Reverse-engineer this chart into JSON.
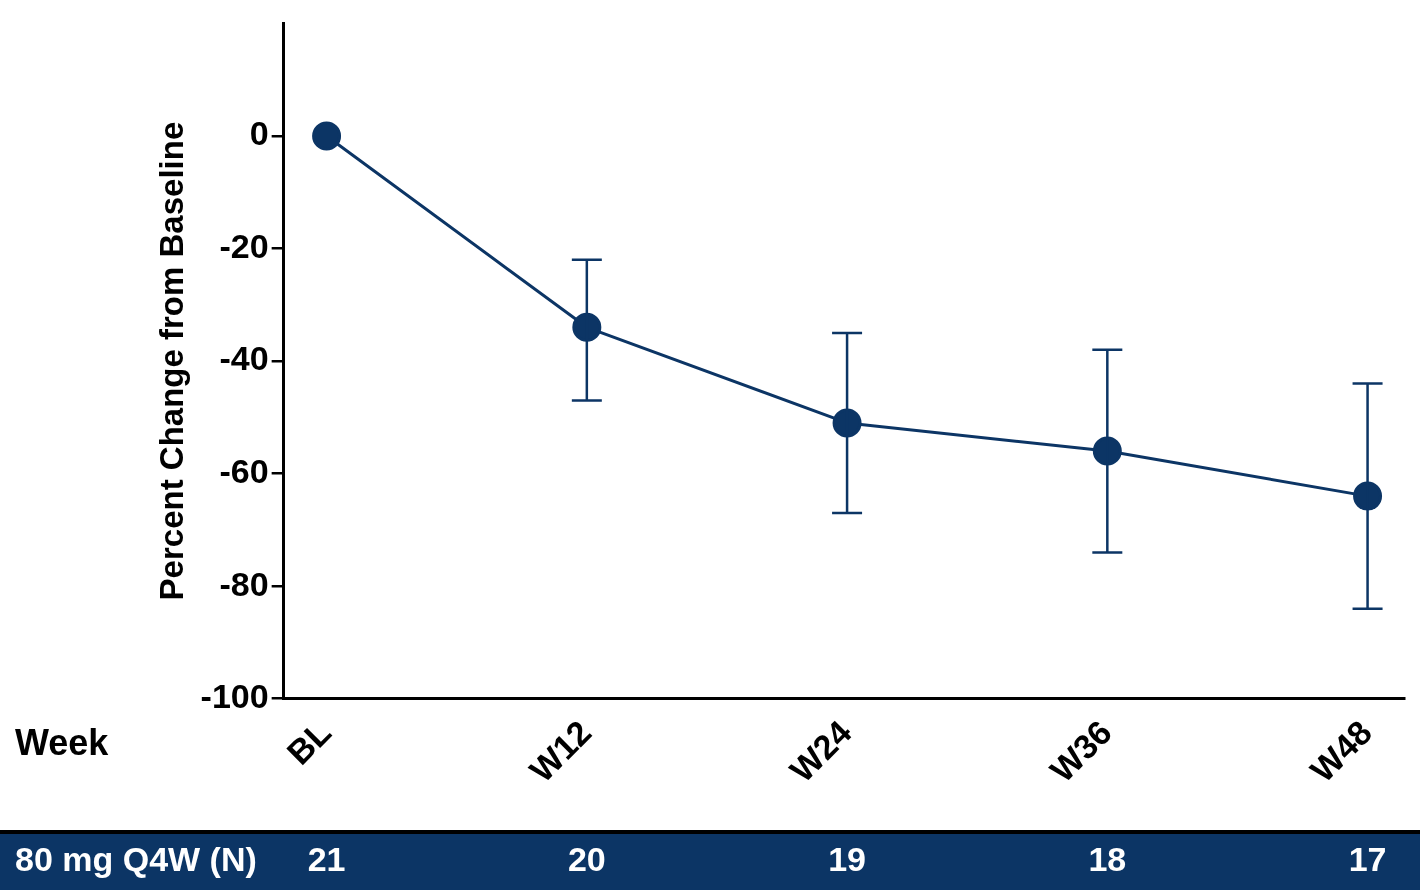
{
  "chart_data": {
    "type": "line",
    "xlabel": "Week",
    "ylabel": "Percent Change from Baseline",
    "categories": [
      "BL",
      "W12",
      "W24",
      "W36",
      "W48"
    ],
    "series": [
      {
        "color": "#0c3565",
        "values": [
          0,
          -34,
          -51,
          -56,
          -64
        ],
        "errors": [
          null,
          [
            -47,
            -22
          ],
          [
            -67,
            -35
          ],
          [
            -74,
            -38
          ],
          [
            -84,
            -44
          ]
        ]
      }
    ],
    "ylim": [
      -100,
      20
    ],
    "yticks": [
      0,
      -20,
      -40,
      -60,
      -80,
      -100
    ],
    "grid": false,
    "legend": false,
    "marker": "circle",
    "line_style": "solid",
    "annotations": [
      "80 mg Q4W (N)",
      "21",
      "20",
      "19",
      "18",
      "17"
    ]
  }
}
